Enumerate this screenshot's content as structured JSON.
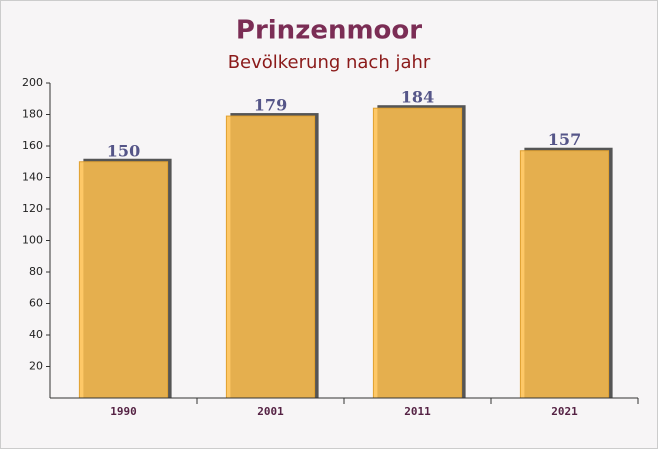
{
  "chart_data": {
    "type": "bar",
    "title": "Prinzenmoor",
    "subtitle": "Bevölkerung nach jahr",
    "categories": [
      "1990",
      "2001",
      "2011",
      "2021"
    ],
    "values": [
      150,
      179,
      184,
      157
    ],
    "color": "#ffc04d",
    "ylim": [
      0,
      200
    ],
    "yticks": [
      20,
      40,
      60,
      80,
      100,
      120,
      140,
      160,
      180,
      200
    ],
    "grid": false
  }
}
